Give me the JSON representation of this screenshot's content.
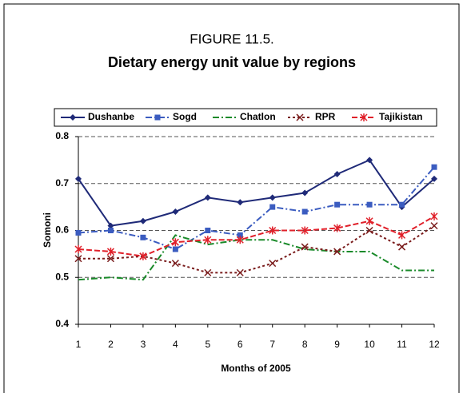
{
  "chart_data": {
    "type": "line",
    "title": "FIGURE 11.5.",
    "subtitle": "Dietary energy unit value by regions",
    "x_label": "Months of 2005",
    "y_label": "Somoni",
    "x": [
      1,
      2,
      3,
      4,
      5,
      6,
      7,
      8,
      9,
      10,
      11,
      12
    ],
    "xlim": [
      1,
      12
    ],
    "xticks": [
      1,
      2,
      3,
      4,
      5,
      6,
      7,
      8,
      9,
      10,
      11,
      12
    ],
    "ylim": [
      0.4,
      0.8
    ],
    "yticks": [
      0.4,
      0.5,
      0.6,
      0.7,
      0.8
    ],
    "grid": true,
    "legend": "top",
    "series": [
      {
        "name": "Dushanbe",
        "color": "#1f2a78",
        "marker": "diamond",
        "dash": "solid",
        "values": [
          0.71,
          0.61,
          0.62,
          0.64,
          0.67,
          0.66,
          0.67,
          0.68,
          0.72,
          0.75,
          0.65,
          0.71
        ]
      },
      {
        "name": "Sogd",
        "color": "#3b5cc0",
        "marker": "square",
        "dash": "dashdot",
        "values": [
          0.595,
          0.6,
          0.585,
          0.56,
          0.6,
          0.59,
          0.65,
          0.64,
          0.655,
          0.655,
          0.655,
          0.735
        ]
      },
      {
        "name": "Chatlon",
        "color": "#1a8a2a",
        "marker": "none",
        "dash": "dashdot",
        "values": [
          0.495,
          0.5,
          0.495,
          0.59,
          0.57,
          0.58,
          0.58,
          0.56,
          0.555,
          0.555,
          0.515,
          0.515
        ]
      },
      {
        "name": "RPR",
        "color": "#7a1c1c",
        "marker": "x",
        "dash": "dotted",
        "values": [
          0.54,
          0.54,
          0.545,
          0.53,
          0.51,
          0.51,
          0.53,
          0.565,
          0.555,
          0.6,
          0.565,
          0.61
        ]
      },
      {
        "name": "Tajikistan",
        "color": "#e0202a",
        "marker": "star",
        "dash": "dashed",
        "values": [
          0.56,
          0.555,
          0.545,
          0.575,
          0.58,
          0.58,
          0.6,
          0.6,
          0.605,
          0.62,
          0.59,
          0.63
        ]
      }
    ]
  }
}
